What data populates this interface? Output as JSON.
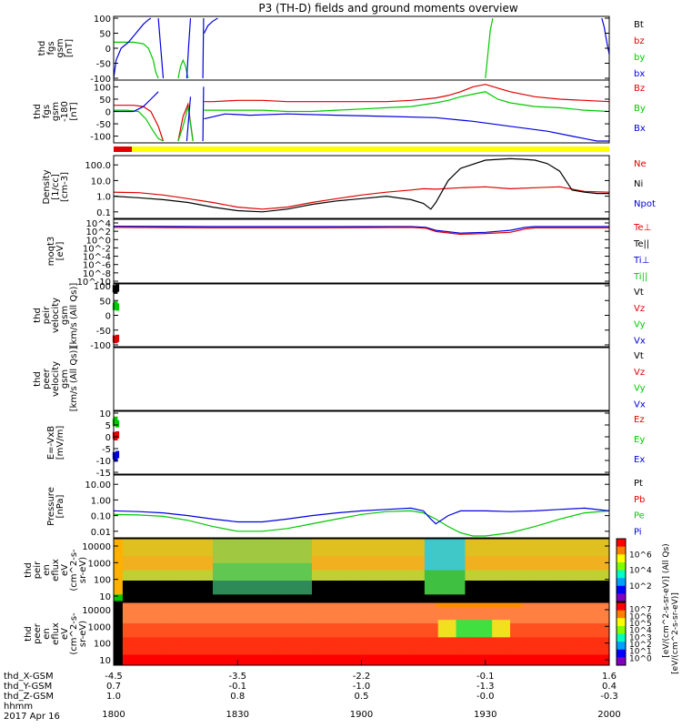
{
  "title": "P3 (TH-D) fields and ground moments overview",
  "footer": {
    "x_labels": [
      "thd_X-GSM",
      "thd_Y-GSM",
      "thd_Z-GSM",
      "hhmm",
      "2017 Apr 16"
    ],
    "columns": [
      {
        "x": "-4.5",
        "y": "0.7",
        "z": "1.0",
        "time": "1800"
      },
      {
        "x": "-3.5",
        "y": "-0.1",
        "z": "0.8",
        "time": "1830"
      },
      {
        "x": "-2.2",
        "y": "-1.0",
        "z": "0.5",
        "time": "1900"
      },
      {
        "x": "-0.1",
        "y": "-1.3",
        "z": "-0.0",
        "time": "1930"
      },
      {
        "x": "1.6",
        "y": "0.4",
        "z": "-0.3",
        "time": "2000"
      }
    ]
  },
  "colorbar_top_label": "[eV/(cm^2-s-sr-eV)] (All Qs)",
  "colorbar_bottom_label": "[eV/(cm^2-s-sr-eV)]",
  "colors": {
    "black": "#000000",
    "red": "#e00000",
    "green": "#00c800",
    "blue": "#0000e0",
    "yellow": "#ffff00"
  },
  "chart_data": [
    {
      "type": "line",
      "ylabel": [
        "thd",
        "fgs",
        "gsm",
        "[nT]"
      ],
      "yticks": [
        "100",
        "50",
        "0",
        "-50",
        "-100"
      ],
      "ylim": [
        -100,
        100
      ],
      "legend": [
        {
          "name": "Bt",
          "color": "#000000"
        },
        {
          "name": "bz",
          "color": "#e00000"
        },
        {
          "name": "by",
          "color": "#00c800"
        },
        {
          "name": "bx",
          "color": "#0000e0"
        }
      ],
      "series": [
        {
          "name": "by",
          "x": [
            1800,
            1808,
            1812,
            1814,
            1816,
            1817,
            1818
          ],
          "values": [
            20,
            20,
            15,
            0,
            -40,
            -80,
            -100
          ]
        },
        {
          "name": "by",
          "x": [
            1826,
            1827,
            1828,
            1829,
            1830
          ],
          "values": [
            -100,
            -60,
            -40,
            -60,
            -100
          ]
        },
        {
          "name": "by",
          "x": [
            1950,
            1951,
            1952,
            1953
          ],
          "values": [
            -100,
            -20,
            60,
            100
          ]
        },
        {
          "name": "bx",
          "x": [
            1800,
            1801,
            1803,
            1806,
            1809,
            1812,
            1814,
            1815
          ],
          "values": [
            -100,
            -40,
            0,
            20,
            50,
            80,
            95,
            100
          ]
        },
        {
          "name": "bx",
          "x": [
            1818,
            1819,
            1820
          ],
          "values": [
            100,
            0,
            -100
          ]
        },
        {
          "name": "bx",
          "x": [
            1829.5,
            1830.2,
            1831
          ],
          "values": [
            -100,
            0,
            100
          ]
        },
        {
          "name": "bx",
          "x": [
            1836,
            1836.3
          ],
          "values": [
            -100,
            100
          ]
        },
        {
          "name": "bx",
          "x": [
            1836.5,
            1838,
            1840,
            1842
          ],
          "values": [
            50,
            75,
            90,
            100
          ]
        },
        {
          "name": "bx",
          "x": [
            1997,
            1998,
            1999,
            2000
          ],
          "values": [
            100,
            70,
            20,
            -20
          ]
        }
      ]
    },
    {
      "type": "line",
      "ylabel": [
        "thd",
        "fgs",
        "gsm",
        "-180",
        "[nT]"
      ],
      "yticks": [
        "100",
        "50",
        "0",
        "-50",
        "-100"
      ],
      "ylim": [
        -120,
        120
      ],
      "legend": [
        {
          "name": "Bz",
          "color": "#e00000"
        },
        {
          "name": "By",
          "color": "#00c800"
        },
        {
          "name": "Bx",
          "color": "#0000e0"
        }
      ],
      "series": [
        {
          "name": "Bz",
          "x": [
            1800,
            1808,
            1812,
            1815,
            1818,
            1820
          ],
          "values": [
            25,
            25,
            20,
            0,
            -60,
            -120
          ]
        },
        {
          "name": "Bz",
          "x": [
            1826,
            1828,
            1830,
            1832
          ],
          "values": [
            -120,
            -20,
            30,
            -120
          ]
        },
        {
          "name": "Bz",
          "x": [
            1836.5,
            1840,
            1850,
            1860,
            1870,
            1880,
            1890,
            1900,
            1910,
            1920,
            1930,
            1935,
            1940,
            1945,
            1950,
            1955,
            1960,
            1970,
            1980,
            1990,
            2000
          ],
          "values": [
            40,
            40,
            45,
            45,
            40,
            40,
            40,
            40,
            40,
            45,
            55,
            65,
            80,
            100,
            110,
            95,
            80,
            60,
            50,
            45,
            40
          ]
        },
        {
          "name": "By",
          "x": [
            1800,
            1805,
            1810,
            1813,
            1816,
            1818,
            1820
          ],
          "values": [
            5,
            5,
            0,
            -30,
            -80,
            -110,
            -120
          ]
        },
        {
          "name": "By",
          "x": [
            1826,
            1828,
            1830,
            1832
          ],
          "values": [
            -120,
            -60,
            20,
            -120
          ]
        },
        {
          "name": "By",
          "x": [
            1836.5,
            1840,
            1850,
            1860,
            1870,
            1880,
            1890,
            1900,
            1910,
            1920,
            1930,
            1935,
            1940,
            1945,
            1950,
            1955,
            1960,
            1970,
            1980,
            1990,
            2000
          ],
          "values": [
            5,
            5,
            5,
            5,
            0,
            0,
            5,
            10,
            15,
            20,
            35,
            45,
            60,
            70,
            80,
            50,
            35,
            20,
            15,
            5,
            0
          ]
        },
        {
          "name": "Bx",
          "x": [
            1800,
            1808,
            1812,
            1815,
            1818
          ],
          "values": [
            0,
            0,
            20,
            50,
            80
          ]
        },
        {
          "name": "Bx",
          "x": [
            1829.5,
            1831
          ],
          "values": [
            -120,
            60
          ]
        },
        {
          "name": "Bx",
          "x": [
            1836,
            1836.3
          ],
          "values": [
            -120,
            100
          ]
        },
        {
          "name": "Bx",
          "x": [
            1836.5,
            1845,
            1855,
            1870,
            1890,
            1910,
            1930,
            1945,
            1960,
            1975,
            1985,
            1990,
            1995,
            2000
          ],
          "values": [
            -30,
            -10,
            -15,
            -10,
            -15,
            -20,
            -25,
            -40,
            -60,
            -80,
            -100,
            -110,
            -120,
            -120
          ]
        }
      ]
    },
    {
      "type": "line",
      "ylabel": [
        "Density",
        "[1/cc]",
        "[cm-3]"
      ],
      "yticks": [
        "100.0",
        "10.0",
        "1.0",
        "0.1"
      ],
      "ylim": [
        0.05,
        300
      ],
      "scale": "log",
      "legend": [
        {
          "name": "Ne",
          "color": "#e00000"
        },
        {
          "name": "Ni",
          "color": "#000000"
        },
        {
          "name": "Npot",
          "color": "#0000e0"
        }
      ],
      "series": [
        {
          "name": "Ne",
          "x": [
            1800,
            1810,
            1820,
            1830,
            1840,
            1850,
            1860,
            1870,
            1880,
            1890,
            1900,
            1910,
            1920,
            1925,
            1930,
            1940,
            1950,
            1960,
            1970,
            1980,
            1990,
            2000
          ],
          "values": [
            1.8,
            1.7,
            1.2,
            0.7,
            0.4,
            0.2,
            0.15,
            0.2,
            0.4,
            0.7,
            1.2,
            1.8,
            2.5,
            3.0,
            2.8,
            3.5,
            4.0,
            3.0,
            3.5,
            4.0,
            2.0,
            1.8
          ]
        },
        {
          "name": "Ni",
          "x": [
            1800,
            1810,
            1820,
            1830,
            1840,
            1850,
            1860,
            1870,
            1880,
            1890,
            1900,
            1910,
            1920,
            1925,
            1928,
            1930,
            1935,
            1940,
            1950,
            1960,
            1965,
            1970,
            1975,
            1980,
            1985,
            1990,
            1995,
            2000
          ],
          "values": [
            1.0,
            0.8,
            0.6,
            0.4,
            0.2,
            0.12,
            0.1,
            0.15,
            0.3,
            0.5,
            0.7,
            1.0,
            0.6,
            0.35,
            0.15,
            0.4,
            10,
            60,
            200,
            250,
            230,
            200,
            120,
            40,
            2.5,
            1.8,
            1.5,
            1.5
          ]
        }
      ]
    },
    {
      "type": "line",
      "ylabel": [
        "moqt3",
        "[eV]"
      ],
      "yticks": [
        "10^4",
        "10^2",
        "10^0",
        "10^-2",
        "10^-4",
        "10^-6",
        "10^-8",
        "10^-10"
      ],
      "ylim": [
        -10,
        4.3
      ],
      "scale": "log",
      "legend": [
        {
          "name": "Te⊥",
          "color": "#e00000"
        },
        {
          "name": "Te||",
          "color": "#000000"
        },
        {
          "name": "Ti⊥",
          "color": "#0000e0"
        },
        {
          "name": "Ti||",
          "color": "#00c800"
        }
      ],
      "series": [
        {
          "name": "Ti⊥",
          "x": [
            1800,
            1840,
            1880,
            1920,
            1926,
            1930,
            1940,
            1950,
            1960,
            1966,
            1970,
            2000
          ],
          "values": [
            3.5,
            3.4,
            3.4,
            3.4,
            3.2,
            2.5,
            1.8,
            2.0,
            2.5,
            3.2,
            3.4,
            3.4
          ]
        },
        {
          "name": "Te⊥",
          "x": [
            1800,
            1840,
            1880,
            1920,
            1926,
            1930,
            1940,
            1950,
            1960,
            1966,
            1970,
            2000
          ],
          "values": [
            3.2,
            3.1,
            3.1,
            3.2,
            3.0,
            2.2,
            1.5,
            1.7,
            2.0,
            2.8,
            3.1,
            3.1
          ]
        }
      ]
    },
    {
      "type": "scatter",
      "ylabel": [
        "thd",
        "peir",
        "velocity",
        "gsm",
        "[km/s (All Qs)]"
      ],
      "yticks": [
        "100",
        "50",
        "0",
        "-50",
        "-100"
      ],
      "ylim": [
        -100,
        100
      ],
      "legend": [
        {
          "name": "Vt",
          "color": "#000000"
        },
        {
          "name": "Vz",
          "color": "#e00000"
        },
        {
          "name": "Vy",
          "color": "#00c800"
        },
        {
          "name": "Vx",
          "color": "#0000e0"
        }
      ],
      "series": [
        {
          "name": "Vt",
          "x": [
            1800.3,
            1800.9,
            1801.5
          ],
          "values": [
            90,
            85,
            92
          ]
        },
        {
          "name": "Vy",
          "x": [
            1800.3,
            1800.9,
            1801.5
          ],
          "values": [
            30,
            35,
            28
          ]
        },
        {
          "name": "Vz",
          "x": [
            1800.3,
            1800.9,
            1801.5
          ],
          "values": [
            -80,
            -82,
            -78
          ]
        }
      ]
    },
    {
      "type": "line",
      "ylabel": [
        "thd",
        "peer",
        "velocity",
        "gsm",
        "[km/s (All Qs)]"
      ],
      "yticks": [],
      "legend": [
        {
          "name": "Vt",
          "color": "#000000"
        },
        {
          "name": "Vz",
          "color": "#e00000"
        },
        {
          "name": "Vy",
          "color": "#00c800"
        },
        {
          "name": "Vx",
          "color": "#0000e0"
        }
      ],
      "series": []
    },
    {
      "type": "scatter",
      "ylabel": [
        "E=-VxB",
        "[mV/m]"
      ],
      "yticks": [
        "10",
        "5",
        "0",
        "-5",
        "-10",
        "-15"
      ],
      "ylim": [
        -15,
        10
      ],
      "legend": [
        {
          "name": "Ez",
          "color": "#e00000"
        },
        {
          "name": "Ey",
          "color": "#00c800"
        },
        {
          "name": "Ex",
          "color": "#0000e0"
        }
      ],
      "series": [
        {
          "name": "Ey",
          "x": [
            1800.3,
            1800.9,
            1801.5
          ],
          "values": [
            6,
            7,
            5.5
          ]
        },
        {
          "name": "Ez",
          "x": [
            1800.3,
            1800.9,
            1801.5
          ],
          "values": [
            0.5,
            0,
            0.8
          ]
        },
        {
          "name": "Ex",
          "x": [
            1800.3,
            1800.9,
            1801.5
          ],
          "values": [
            -8,
            -9,
            -7.5
          ]
        }
      ]
    },
    {
      "type": "line",
      "ylabel": [
        "Pressure",
        "[nPa]"
      ],
      "yticks": [
        "10.00",
        "1.00",
        "0.10",
        "0.01"
      ],
      "ylim": [
        0.005,
        30
      ],
      "scale": "log",
      "legend": [
        {
          "name": "Pt",
          "color": "#000000"
        },
        {
          "name": "Pb",
          "color": "#e00000"
        },
        {
          "name": "Pe",
          "color": "#00c800"
        },
        {
          "name": "Pi",
          "color": "#0000e0"
        }
      ],
      "series": [
        {
          "name": "Pe",
          "x": [
            1800,
            1810,
            1820,
            1830,
            1840,
            1850,
            1860,
            1870,
            1880,
            1890,
            1900,
            1910,
            1920,
            1925,
            1930,
            1935,
            1940,
            1945,
            1950,
            1960,
            1970,
            1980,
            1990,
            2000
          ],
          "values": [
            0.12,
            0.11,
            0.09,
            0.05,
            0.02,
            0.01,
            0.01,
            0.015,
            0.03,
            0.06,
            0.12,
            0.18,
            0.2,
            0.15,
            0.06,
            0.02,
            0.008,
            0.005,
            0.005,
            0.008,
            0.02,
            0.06,
            0.15,
            0.2
          ]
        },
        {
          "name": "Pi",
          "x": [
            1800,
            1810,
            1820,
            1830,
            1840,
            1850,
            1860,
            1870,
            1880,
            1890,
            1900,
            1910,
            1920,
            1925,
            1928,
            1930,
            1935,
            1940,
            1950,
            1960,
            1970,
            1980,
            1990,
            2000
          ],
          "values": [
            0.2,
            0.18,
            0.15,
            0.1,
            0.06,
            0.04,
            0.04,
            0.06,
            0.1,
            0.15,
            0.2,
            0.25,
            0.3,
            0.2,
            0.06,
            0.03,
            0.1,
            0.2,
            0.2,
            0.18,
            0.2,
            0.25,
            0.3,
            0.2
          ]
        }
      ]
    },
    {
      "type": "heatmap",
      "ylabel": [
        "thd",
        "peir",
        "en",
        "eflux",
        "eV",
        "(cm^2-s-",
        "sr-eV)"
      ],
      "yticks": [
        "10000",
        "1000",
        "100",
        "10"
      ],
      "colorbar_ticks": [
        "10^6",
        "10^4",
        "10^2"
      ]
    },
    {
      "type": "heatmap",
      "ylabel": [
        "thd",
        "peer",
        "en",
        "eflux",
        "eV",
        "(cm^2-s-",
        "sr-eV)"
      ],
      "yticks": [
        "10000",
        "1000",
        "100",
        "10"
      ],
      "colorbar_ticks": [
        "10^7",
        "10^6",
        "10^5",
        "10^4",
        "10^3",
        "10^2",
        "10^1",
        "10^0"
      ]
    }
  ]
}
